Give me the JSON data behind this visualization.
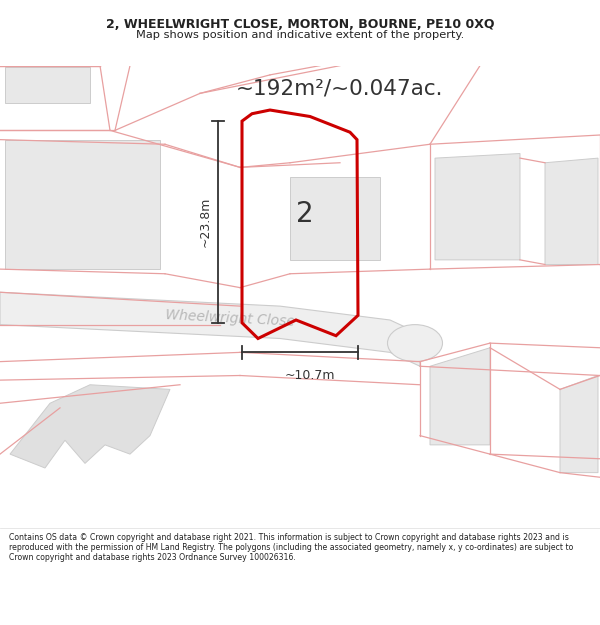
{
  "title_line1": "2, WHEELWRIGHT CLOSE, MORTON, BOURNE, PE10 0XQ",
  "title_line2": "Map shows position and indicative extent of the property.",
  "area_text": "~192m²/~0.047ac.",
  "dimension_h": "~23.8m",
  "dimension_w": "~10.7m",
  "plot_label": "2",
  "road_label": "Wheelwright Close",
  "copyright_text": "Contains OS data © Crown copyright and database right 2021. This information is subject to Crown copyright and database rights 2023 and is reproduced with the permission of HM Land Registry. The polygons (including the associated geometry, namely x, y co-ordinates) are subject to Crown copyright and database rights 2023 Ordnance Survey 100026316.",
  "bg_color": "#ffffff",
  "plot_outline_color": "#cc0000",
  "bg_parcel_color": "#e8e8e8",
  "bg_parcel_edge": "#e8a0a0",
  "dim_color": "#333333"
}
